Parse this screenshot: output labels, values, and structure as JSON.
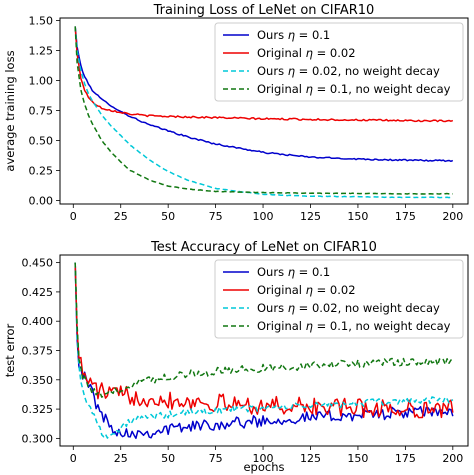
{
  "chart_data": [
    {
      "type": "line",
      "title": "Training Loss of LeNet on CIFAR10",
      "xlabel": "",
      "ylabel": "average training loss",
      "xlim": [
        -7,
        208
      ],
      "ylim": [
        -0.03,
        1.52
      ],
      "xticks": [
        0,
        25,
        50,
        75,
        100,
        125,
        150,
        175,
        200
      ],
      "yticks": [
        0.0,
        0.25,
        0.5,
        0.75,
        1.0,
        1.25,
        1.5
      ],
      "ytick_labels": [
        "0.00",
        "0.25",
        "0.50",
        "0.75",
        "1.00",
        "1.25",
        "1.50"
      ],
      "legend_position": "top-right",
      "series": [
        {
          "name": "Ours η = 0.1",
          "label_plain": "Ours ",
          "label_eta": "η",
          "label_value": " = 0.1",
          "label_suffix": "",
          "color": "#0000cc",
          "dash": "solid",
          "noise": 0.006,
          "x": [
            1,
            2,
            4,
            6,
            8,
            10,
            15,
            20,
            25,
            30,
            40,
            50,
            60,
            75,
            100,
            125,
            150,
            175,
            200
          ],
          "y": [
            1.45,
            1.28,
            1.12,
            1.03,
            0.97,
            0.92,
            0.84,
            0.79,
            0.74,
            0.7,
            0.63,
            0.58,
            0.53,
            0.47,
            0.4,
            0.36,
            0.345,
            0.335,
            0.33
          ]
        },
        {
          "name": "Original η = 0.02",
          "label_plain": "Original ",
          "label_eta": "η",
          "label_value": " = 0.02",
          "label_suffix": "",
          "color": "#ee0000",
          "dash": "solid",
          "noise": 0.007,
          "x": [
            1,
            2,
            4,
            6,
            8,
            10,
            15,
            20,
            25,
            30,
            40,
            50,
            75,
            100,
            125,
            150,
            175,
            200
          ],
          "y": [
            1.45,
            1.22,
            1.02,
            0.92,
            0.86,
            0.82,
            0.77,
            0.75,
            0.735,
            0.72,
            0.705,
            0.7,
            0.69,
            0.68,
            0.675,
            0.67,
            0.665,
            0.66
          ]
        },
        {
          "name": "Ours η = 0.02, no weight decay",
          "label_plain": "Ours ",
          "label_eta": "η",
          "label_value": " = 0.02",
          "label_suffix": ", no weight decay",
          "color": "#00c8d8",
          "dash": "5,3",
          "noise": 0.002,
          "x": [
            1,
            2,
            4,
            6,
            8,
            10,
            15,
            20,
            25,
            30,
            40,
            50,
            60,
            75,
            100,
            125,
            150,
            175,
            200
          ],
          "y": [
            1.45,
            1.25,
            1.08,
            0.97,
            0.89,
            0.83,
            0.71,
            0.62,
            0.54,
            0.46,
            0.34,
            0.24,
            0.17,
            0.1,
            0.05,
            0.035,
            0.03,
            0.025,
            0.025
          ]
        },
        {
          "name": "Original η = 0.1, no weight decay",
          "label_plain": "Original ",
          "label_eta": "η",
          "label_value": " = 0.1",
          "label_suffix": ", no weight decay",
          "color": "#117711",
          "dash": "5,3",
          "noise": 0.002,
          "x": [
            1,
            2,
            4,
            6,
            8,
            10,
            15,
            20,
            25,
            30,
            40,
            50,
            60,
            75,
            100,
            125,
            150,
            175,
            200
          ],
          "y": [
            1.45,
            1.15,
            0.92,
            0.8,
            0.71,
            0.64,
            0.5,
            0.4,
            0.32,
            0.25,
            0.17,
            0.12,
            0.095,
            0.075,
            0.065,
            0.06,
            0.058,
            0.055,
            0.055
          ]
        }
      ]
    },
    {
      "type": "line",
      "title": "Test Accuracy of LeNet on CIFAR10",
      "xlabel": "epochs",
      "ylabel": "test error",
      "xlim": [
        -7,
        208
      ],
      "ylim": [
        0.2935,
        0.4565
      ],
      "xticks": [
        0,
        25,
        50,
        75,
        100,
        125,
        150,
        175,
        200
      ],
      "yticks": [
        0.3,
        0.325,
        0.35,
        0.375,
        0.4,
        0.425,
        0.45
      ],
      "ytick_labels": [
        "0.300",
        "0.325",
        "0.350",
        "0.375",
        "0.400",
        "0.425",
        "0.450"
      ],
      "legend_position": "top-right",
      "series": [
        {
          "name": "Ours η = 0.1",
          "label_plain": "Ours ",
          "label_eta": "η",
          "label_value": " = 0.1",
          "label_suffix": "",
          "color": "#0000cc",
          "dash": "solid",
          "noise": 0.005,
          "x": [
            1,
            2,
            3,
            5,
            8,
            10,
            12,
            15,
            20,
            25,
            30,
            40,
            50,
            60,
            75,
            100,
            125,
            150,
            175,
            200
          ],
          "y": [
            0.45,
            0.39,
            0.365,
            0.355,
            0.345,
            0.34,
            0.33,
            0.32,
            0.31,
            0.305,
            0.305,
            0.305,
            0.308,
            0.31,
            0.312,
            0.315,
            0.318,
            0.32,
            0.322,
            0.323
          ]
        },
        {
          "name": "Original η = 0.02",
          "label_plain": "Original ",
          "label_eta": "η",
          "label_value": " = 0.02",
          "label_suffix": "",
          "color": "#ee0000",
          "dash": "solid",
          "noise": 0.008,
          "x": [
            1,
            2,
            3,
            5,
            8,
            10,
            12,
            15,
            20,
            25,
            30,
            40,
            50,
            60,
            75,
            100,
            125,
            150,
            175,
            200
          ],
          "y": [
            0.45,
            0.4,
            0.37,
            0.355,
            0.35,
            0.345,
            0.342,
            0.34,
            0.338,
            0.337,
            0.336,
            0.335,
            0.333,
            0.332,
            0.33,
            0.328,
            0.327,
            0.326,
            0.325,
            0.325
          ]
        },
        {
          "name": "Ours η = 0.02, no weight decay",
          "label_plain": "Ours ",
          "label_eta": "η",
          "label_value": " = 0.02",
          "label_suffix": ", no weight decay",
          "color": "#00c8d8",
          "dash": "5,3",
          "noise": 0.003,
          "x": [
            1,
            2,
            3,
            5,
            8,
            10,
            12,
            15,
            20,
            25,
            30,
            40,
            50,
            60,
            75,
            100,
            125,
            150,
            175,
            200
          ],
          "y": [
            0.45,
            0.39,
            0.36,
            0.34,
            0.33,
            0.322,
            0.315,
            0.305,
            0.302,
            0.308,
            0.315,
            0.318,
            0.32,
            0.322,
            0.324,
            0.326,
            0.328,
            0.33,
            0.332,
            0.333
          ]
        },
        {
          "name": "Original η = 0.1, no weight decay",
          "label_plain": "Original ",
          "label_eta": "η",
          "label_value": " = 0.1",
          "label_suffix": ", no weight decay",
          "color": "#117711",
          "dash": "5,3",
          "noise": 0.0035,
          "x": [
            1,
            2,
            3,
            5,
            8,
            10,
            12,
            15,
            20,
            25,
            30,
            40,
            50,
            60,
            75,
            100,
            125,
            150,
            175,
            200
          ],
          "y": [
            0.45,
            0.4,
            0.37,
            0.352,
            0.345,
            0.34,
            0.338,
            0.336,
            0.338,
            0.342,
            0.346,
            0.35,
            0.353,
            0.355,
            0.357,
            0.36,
            0.362,
            0.364,
            0.365,
            0.366
          ]
        }
      ]
    }
  ]
}
